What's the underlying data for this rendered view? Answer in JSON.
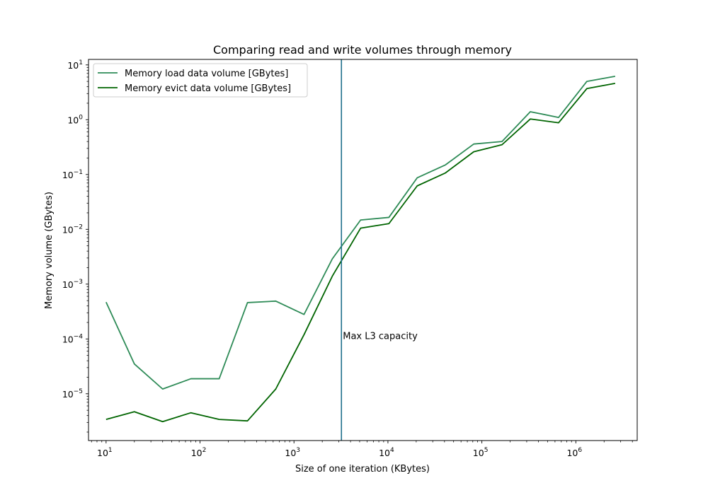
{
  "chart_data": {
    "type": "line",
    "title": "Comparing read and write volumes through memory",
    "xlabel": "Size of one iteration (KBytes)",
    "ylabel": "Memory volume (GBytes)",
    "xscale": "log",
    "yscale": "log",
    "xlim": [
      6.5,
      4500000
    ],
    "ylim": [
      1.4e-06,
      12.6
    ],
    "x_ticks": [
      {
        "value": 10,
        "base": "10",
        "exp": "1"
      },
      {
        "value": 100,
        "base": "10",
        "exp": "2"
      },
      {
        "value": 1000,
        "base": "10",
        "exp": "3"
      },
      {
        "value": 10000,
        "base": "10",
        "exp": "4"
      },
      {
        "value": 100000,
        "base": "10",
        "exp": "5"
      },
      {
        "value": 1000000,
        "base": "10",
        "exp": "6"
      }
    ],
    "y_ticks": [
      {
        "value": 1e-05,
        "base": "10",
        "exp": "−5"
      },
      {
        "value": 0.0001,
        "base": "10",
        "exp": "−4"
      },
      {
        "value": 0.001,
        "base": "10",
        "exp": "−3"
      },
      {
        "value": 0.01,
        "base": "10",
        "exp": "−2"
      },
      {
        "value": 0.1,
        "base": "10",
        "exp": "−1"
      },
      {
        "value": 1,
        "base": "10",
        "exp": "0"
      },
      {
        "value": 10,
        "base": "10",
        "exp": "1"
      }
    ],
    "x": [
      10,
      20,
      40,
      80,
      160,
      320,
      640,
      1280,
      2560,
      5120,
      10240,
      20480,
      40960,
      81920,
      163840,
      327680,
      655360,
      1310720,
      2621440
    ],
    "series": [
      {
        "name": "Memory load data volume [GBytes]",
        "color": "#2e8b57",
        "values": [
          0.00047,
          3.5e-05,
          1.22e-05,
          1.88e-05,
          1.88e-05,
          0.00046,
          0.00049,
          0.00028,
          0.0029,
          0.0148,
          0.0165,
          0.087,
          0.15,
          0.36,
          0.4,
          1.4,
          1.1,
          5.0,
          6.2
        ]
      },
      {
        "name": "Memory evict data volume [GBytes]",
        "color": "#006400",
        "values": [
          3.4e-06,
          4.7e-06,
          3.1e-06,
          4.5e-06,
          3.4e-06,
          3.2e-06,
          1.22e-05,
          0.00012,
          0.0014,
          0.0105,
          0.0127,
          0.062,
          0.107,
          0.26,
          0.35,
          1.03,
          0.88,
          3.7,
          4.6
        ]
      }
    ],
    "vline": {
      "x": 3200,
      "label": "Max L3 capacity",
      "label_y": 0.000105,
      "color": "#1f6f8b"
    },
    "legend": {
      "loc": "upper left"
    },
    "grid": false
  }
}
